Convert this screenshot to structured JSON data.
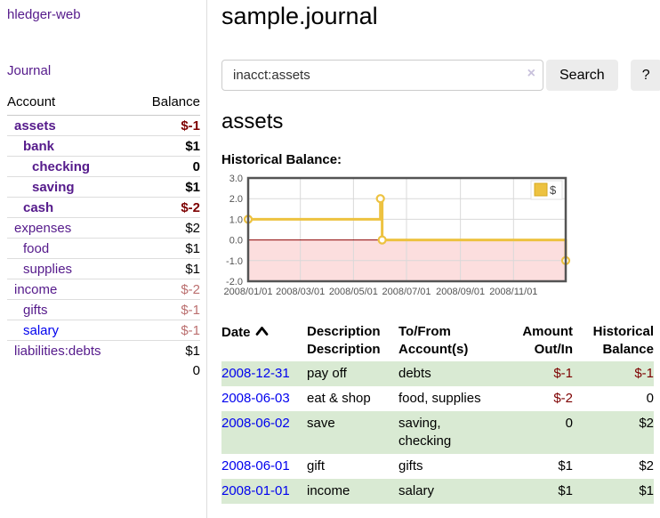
{
  "app": {
    "brand": "hledger-web",
    "nav_journal": "Journal"
  },
  "colors": {
    "purple_link": "#551a8b",
    "blue_link": "#0000ee",
    "negative_strong": "#7d0000",
    "negative_soft": "#bb6f6f",
    "stripe_green": "#d9ead3",
    "chart_line": "#edc240",
    "chart_negative_fill": "#fcdede",
    "chart_zero_line": "#8b0000",
    "chart_grid": "#d9d9d9",
    "chart_border": "#545454"
  },
  "sidebar": {
    "col_account": "Account",
    "col_balance": "Balance",
    "accounts": [
      {
        "name": "assets",
        "indent": 1,
        "bold": true,
        "link_style": "visited",
        "balance": "$-1",
        "balance_style": "neg-strong"
      },
      {
        "name": "bank",
        "indent": 2,
        "bold": true,
        "link_style": "visited",
        "balance": "$1",
        "balance_style": "normal"
      },
      {
        "name": "checking",
        "indent": 3,
        "bold": true,
        "link_style": "visited",
        "balance": "0",
        "balance_style": "normal"
      },
      {
        "name": "saving",
        "indent": 3,
        "bold": true,
        "link_style": "visited",
        "balance": "$1",
        "balance_style": "normal"
      },
      {
        "name": "cash",
        "indent": 2,
        "bold": true,
        "link_style": "visited",
        "balance": "$-2",
        "balance_style": "neg-strong"
      },
      {
        "name": "expenses",
        "indent": 1,
        "bold": false,
        "link_style": "visited",
        "balance": "$2",
        "balance_style": "normal"
      },
      {
        "name": "food",
        "indent": 2,
        "bold": false,
        "link_style": "visited",
        "balance": "$1",
        "balance_style": "normal"
      },
      {
        "name": "supplies",
        "indent": 2,
        "bold": false,
        "link_style": "visited",
        "balance": "$1",
        "balance_style": "normal"
      },
      {
        "name": "income",
        "indent": 1,
        "bold": false,
        "link_style": "visited",
        "balance": "$-2",
        "balance_style": "neg-soft"
      },
      {
        "name": "gifts",
        "indent": 2,
        "bold": false,
        "link_style": "visited",
        "balance": "$-1",
        "balance_style": "neg-soft"
      },
      {
        "name": "salary",
        "indent": 2,
        "bold": false,
        "link_style": "unvisited",
        "balance": "$-1",
        "balance_style": "neg-soft"
      },
      {
        "name": "liabilities:debts",
        "indent": 1,
        "bold": false,
        "link_style": "visited",
        "balance": "$1",
        "balance_style": "normal"
      }
    ],
    "total": "0"
  },
  "main": {
    "title": "sample.journal",
    "search": {
      "value": "inacct:assets",
      "clear_icon": "×",
      "search_label": "Search",
      "help_label": "?"
    },
    "account_heading": "assets",
    "chart_title": "Historical Balance:"
  },
  "chart_data": {
    "type": "line",
    "title": "Historical Balance",
    "step": true,
    "legend": [
      {
        "label": "$",
        "color": "#edc240"
      }
    ],
    "legend_position": "top-right",
    "grid": true,
    "xlim": [
      "2008-01-01",
      "2008-12-31"
    ],
    "ylim": [
      -2,
      3
    ],
    "y_ticks": [
      3.0,
      2.0,
      1.0,
      0.0,
      -1.0,
      -2.0
    ],
    "x_ticks": [
      "2008/01/01",
      "2008/03/01",
      "2008/05/01",
      "2008/07/01",
      "2008/09/01",
      "2008/11/01"
    ],
    "points": [
      {
        "date": "2008-01-01",
        "value": 1
      },
      {
        "date": "2008-06-01",
        "value": 2
      },
      {
        "date": "2008-06-03",
        "value": 0
      },
      {
        "date": "2008-12-31",
        "value": -1
      }
    ]
  },
  "register": {
    "headers": {
      "date": "Date",
      "description": "Description",
      "account_line1": "To/From",
      "account_line2": "Account(s)",
      "amount_line1": "Amount",
      "amount_line2": "Out/In",
      "balance_line1": "Historical",
      "balance_line2": "Balance"
    },
    "sort": {
      "column": "date",
      "direction": "ascending"
    },
    "rows": [
      {
        "date": "2008-12-31",
        "description": "pay off",
        "accounts": "debts",
        "amount": "$-1",
        "amount_negative": true,
        "balance": "$-1",
        "balance_negative": true,
        "striped": true
      },
      {
        "date": "2008-06-03",
        "description": "eat & shop",
        "accounts": "food, supplies",
        "amount": "$-2",
        "amount_negative": true,
        "balance": "0",
        "balance_negative": false,
        "striped": false
      },
      {
        "date": "2008-06-02",
        "description": "save",
        "accounts": "saving,\nchecking",
        "amount": "0",
        "amount_negative": false,
        "balance": "$2",
        "balance_negative": false,
        "striped": true
      },
      {
        "date": "2008-06-01",
        "description": "gift",
        "accounts": "gifts",
        "amount": "$1",
        "amount_negative": false,
        "balance": "$2",
        "balance_negative": false,
        "striped": false
      },
      {
        "date": "2008-01-01",
        "description": "income",
        "accounts": "salary",
        "amount": "$1",
        "amount_negative": false,
        "balance": "$1",
        "balance_negative": false,
        "striped": true
      }
    ]
  }
}
